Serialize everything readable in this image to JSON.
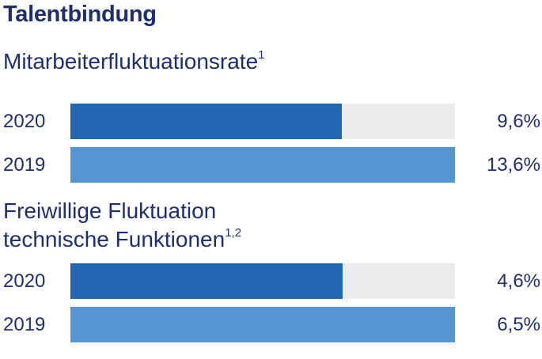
{
  "title": "Talentbindung",
  "charts": [
    {
      "title": "Mitarbeiterfluktuationsrate",
      "title_line2": "",
      "footnote": "1"
    },
    {
      "title": "Freiwillige Fluktuation",
      "title_line2": "technische Funktionen",
      "footnote": "1,2"
    }
  ],
  "colors": {
    "2020": "#2265b0",
    "2019": "#5596d2",
    "track": "#ebecee",
    "text": "#1f2f6b"
  },
  "chart_data": [
    {
      "type": "bar",
      "orientation": "horizontal",
      "title": "Mitarbeiterfluktuationsrate",
      "categories": [
        "2020",
        "2019"
      ],
      "values": [
        9.6,
        13.6
      ],
      "value_labels": [
        "9,6%",
        "13,6%"
      ],
      "xlim": [
        0,
        13.6
      ],
      "grid": false
    },
    {
      "type": "bar",
      "orientation": "horizontal",
      "title": "Freiwillige Fluktuation technische Funktionen",
      "categories": [
        "2020",
        "2019"
      ],
      "values": [
        4.6,
        6.5
      ],
      "value_labels": [
        "4,6%",
        "6,5%"
      ],
      "xlim": [
        0,
        6.5
      ],
      "grid": false
    }
  ]
}
